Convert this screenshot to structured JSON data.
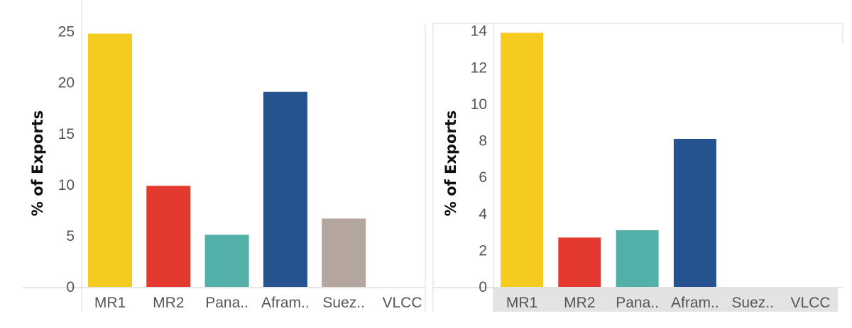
{
  "chart_data": [
    {
      "type": "bar",
      "ylabel": "% of Exports",
      "xlabel": "",
      "ylim": [
        0,
        25.6
      ],
      "yticks": [
        0,
        5,
        10,
        15,
        20,
        25
      ],
      "categories": [
        "MR1",
        "MR2",
        "Pana..",
        "Afram..",
        "Suez..",
        "VLCC"
      ],
      "values": [
        24.8,
        9.9,
        5.1,
        19.1,
        6.7,
        0
      ],
      "colors": [
        "#f4cb1e",
        "#e3392f",
        "#52b0a8",
        "#24538f",
        "#b4a69e",
        "#cccccc"
      ],
      "category_axis_shaded": false,
      "grid": false
    },
    {
      "type": "bar",
      "ylabel": "% of Exports",
      "xlabel": "",
      "ylim": [
        0,
        14.3
      ],
      "yticks": [
        0,
        2,
        4,
        6,
        8,
        10,
        12,
        14
      ],
      "categories": [
        "MR1",
        "MR2",
        "Pana..",
        "Afram..",
        "Suez..",
        "VLCC"
      ],
      "values": [
        13.9,
        2.7,
        3.1,
        8.1,
        0,
        0
      ],
      "colors": [
        "#f4cb1e",
        "#e3392f",
        "#52b0a8",
        "#24538f",
        "#b4a69e",
        "#cccccc"
      ],
      "category_axis_shaded": true,
      "grid": false
    }
  ]
}
